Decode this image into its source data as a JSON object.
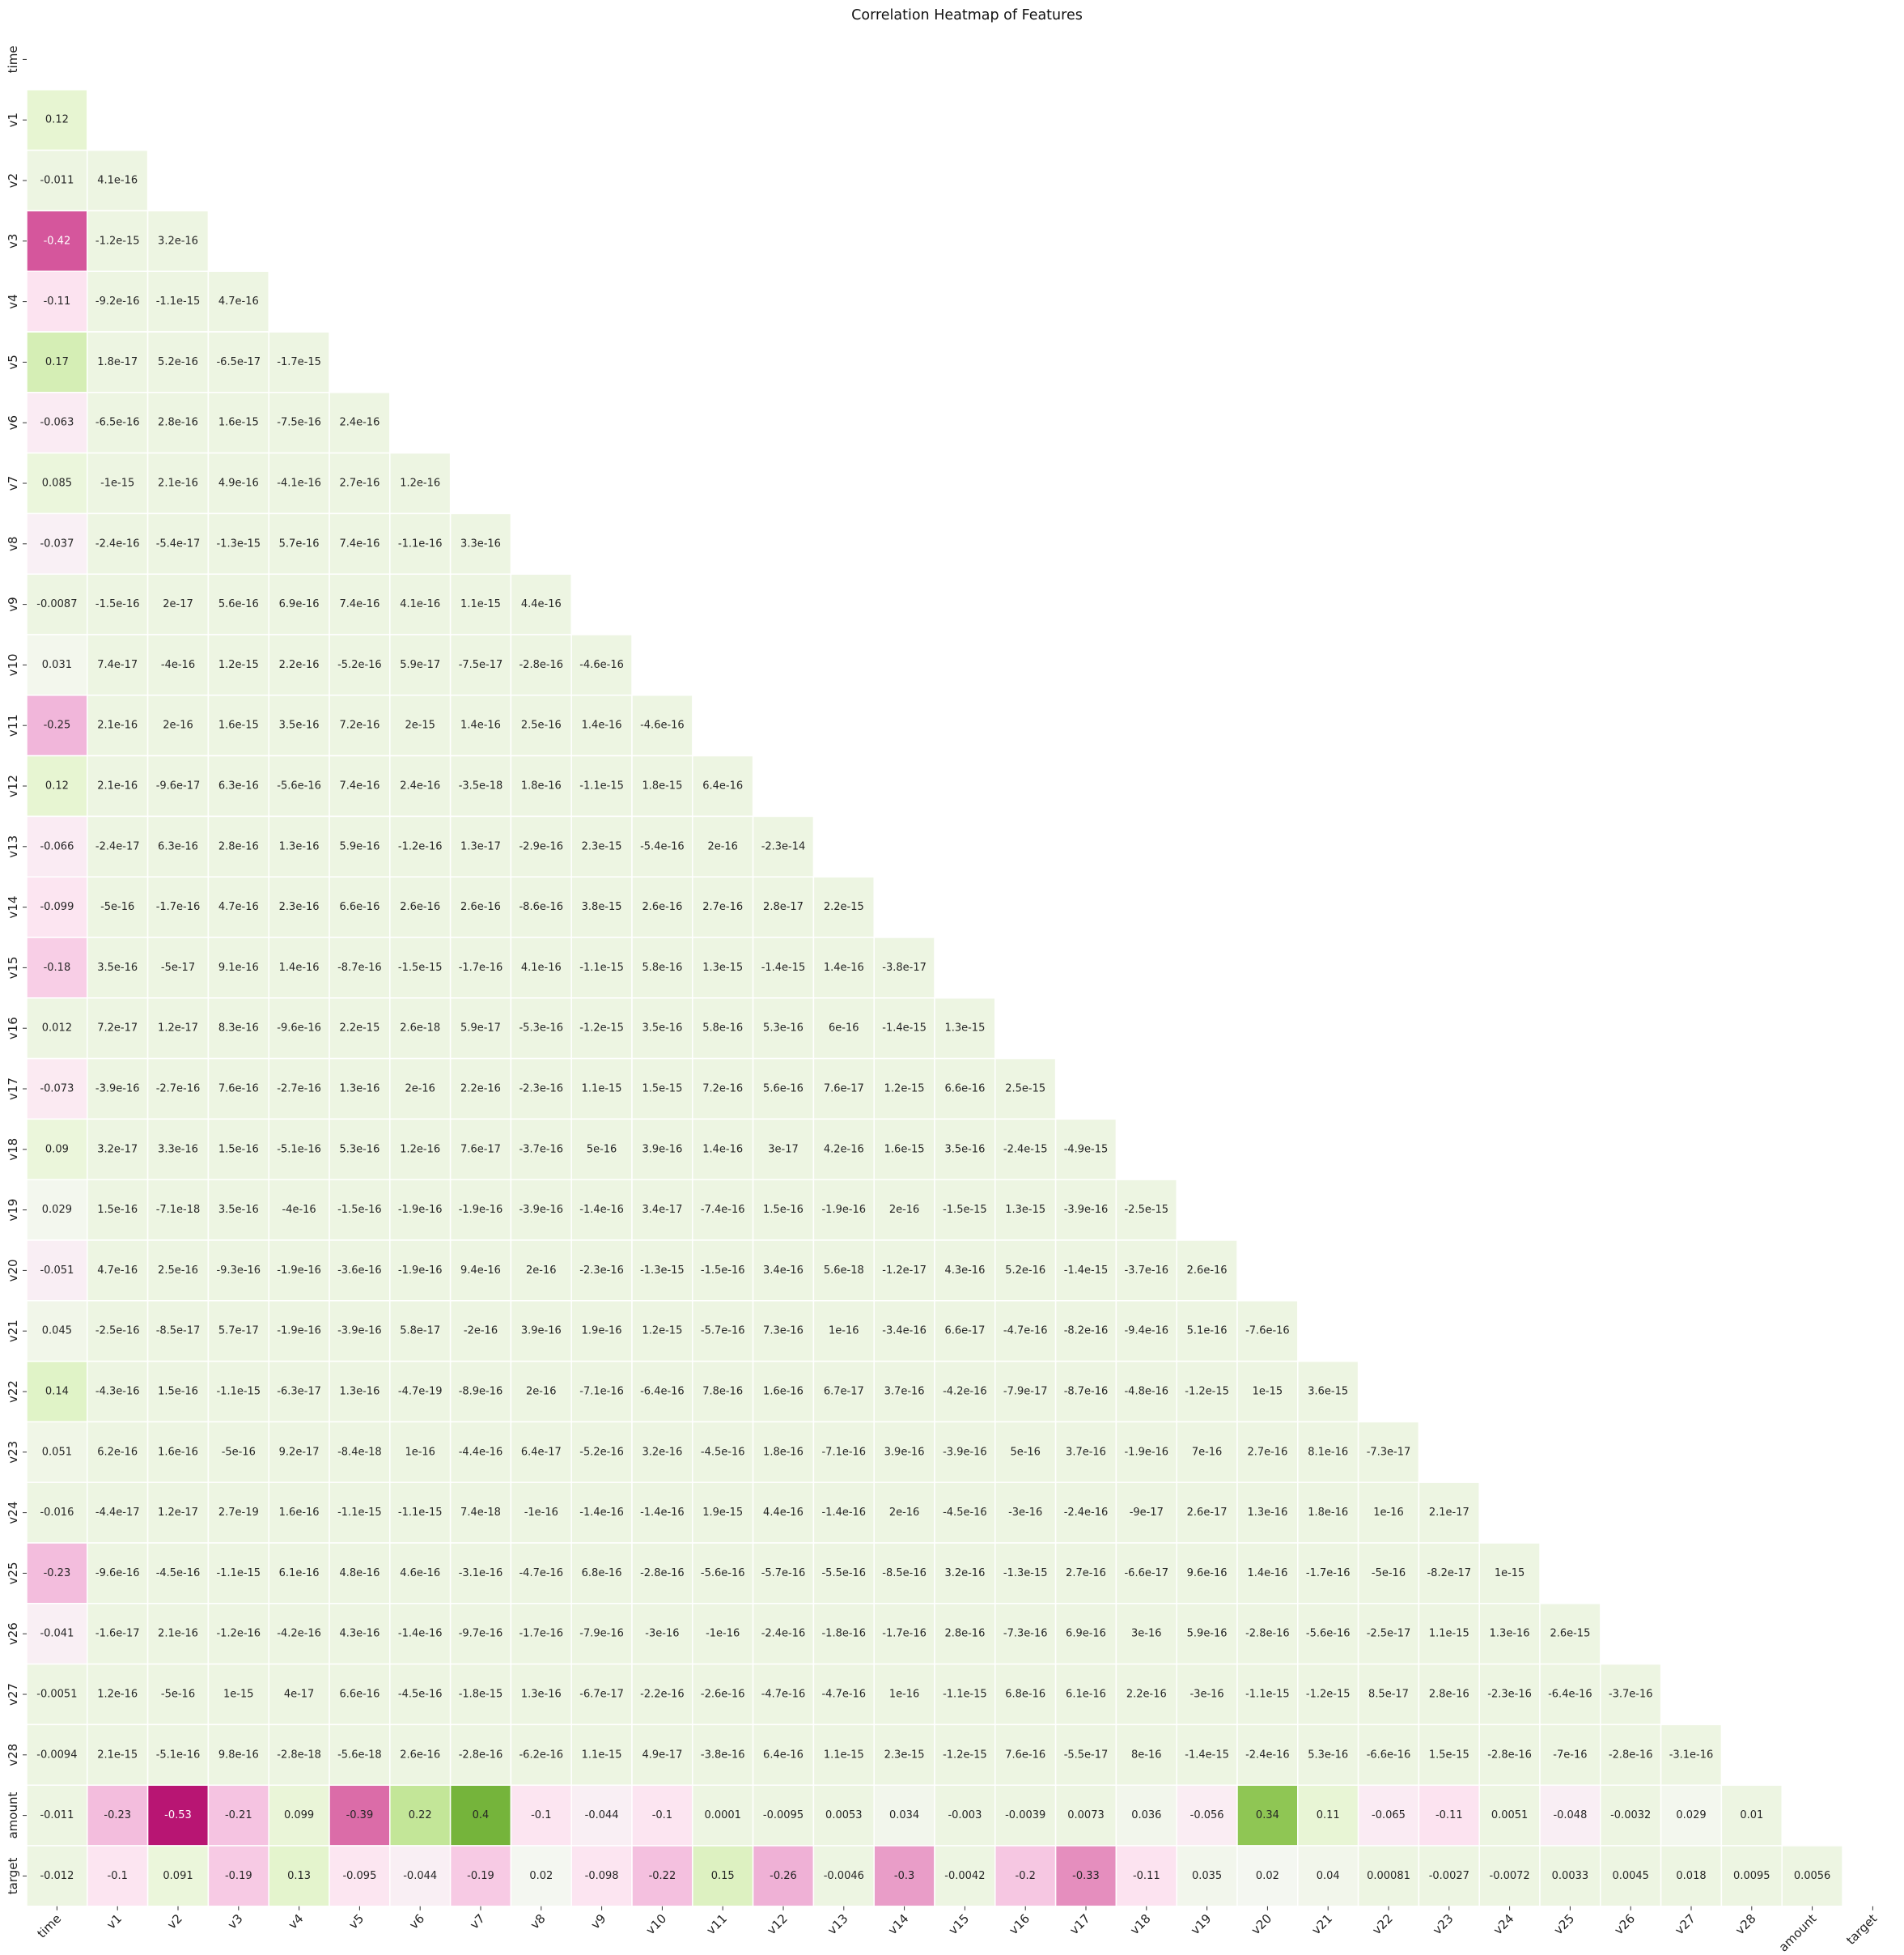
{
  "chart_data": {
    "type": "heatmap",
    "title": "Correlation Heatmap of Features",
    "xlabel": "",
    "ylabel": "",
    "mask": "upper-triangle-including-diagonal",
    "colormap": "PiYG",
    "vmin": -1,
    "vmax": 1,
    "colorbar": false,
    "labels": [
      "time",
      "v1",
      "v2",
      "v3",
      "v4",
      "v5",
      "v6",
      "v7",
      "v8",
      "v9",
      "v10",
      "v11",
      "v12",
      "v13",
      "v14",
      "v15",
      "v16",
      "v17",
      "v18",
      "v19",
      "v20",
      "v21",
      "v22",
      "v23",
      "v24",
      "v25",
      "v26",
      "v27",
      "v28",
      "amount",
      "target"
    ],
    "rows": [
      [],
      [
        "0.12"
      ],
      [
        "-0.011",
        "4.1e-16"
      ],
      [
        "-0.42",
        "-1.2e-15",
        "3.2e-16"
      ],
      [
        "-0.11",
        "-9.2e-16",
        "-1.1e-15",
        "4.7e-16"
      ],
      [
        "0.17",
        "1.8e-17",
        "5.2e-16",
        "-6.5e-17",
        "-1.7e-15"
      ],
      [
        "-0.063",
        "-6.5e-16",
        "2.8e-16",
        "1.6e-15",
        "-7.5e-16",
        "2.4e-16"
      ],
      [
        "0.085",
        "-1e-15",
        "2.1e-16",
        "4.9e-16",
        "-4.1e-16",
        "2.7e-16",
        "1.2e-16"
      ],
      [
        "-0.037",
        "-2.4e-16",
        "-5.4e-17",
        "-1.3e-15",
        "5.7e-16",
        "7.4e-16",
        "-1.1e-16",
        "3.3e-16"
      ],
      [
        "-0.0087",
        "-1.5e-16",
        "2e-17",
        "5.6e-16",
        "6.9e-16",
        "7.4e-16",
        "4.1e-16",
        "1.1e-15",
        "4.4e-16"
      ],
      [
        "0.031",
        "7.4e-17",
        "-4e-16",
        "1.2e-15",
        "2.2e-16",
        "-5.2e-16",
        "5.9e-17",
        "-7.5e-17",
        "-2.8e-16",
        "-4.6e-16"
      ],
      [
        "-0.25",
        "2.1e-16",
        "2e-16",
        "1.6e-15",
        "3.5e-16",
        "7.2e-16",
        "2e-15",
        "1.4e-16",
        "2.5e-16",
        "1.4e-16",
        "-4.6e-16"
      ],
      [
        "0.12",
        "2.1e-16",
        "-9.6e-17",
        "6.3e-16",
        "-5.6e-16",
        "7.4e-16",
        "2.4e-16",
        "-3.5e-18",
        "1.8e-16",
        "-1.1e-15",
        "1.8e-15",
        "6.4e-16"
      ],
      [
        "-0.066",
        "-2.4e-17",
        "6.3e-16",
        "2.8e-16",
        "1.3e-16",
        "5.9e-16",
        "-1.2e-16",
        "1.3e-17",
        "-2.9e-16",
        "2.3e-15",
        "-5.4e-16",
        "2e-16",
        "-2.3e-14"
      ],
      [
        "-0.099",
        "-5e-16",
        "-1.7e-16",
        "4.7e-16",
        "2.3e-16",
        "6.6e-16",
        "2.6e-16",
        "2.6e-16",
        "-8.6e-16",
        "3.8e-15",
        "2.6e-16",
        "2.7e-16",
        "2.8e-17",
        "2.2e-15"
      ],
      [
        "-0.18",
        "3.5e-16",
        "-5e-17",
        "9.1e-16",
        "1.4e-16",
        "-8.7e-16",
        "-1.5e-15",
        "-1.7e-16",
        "4.1e-16",
        "-1.1e-15",
        "5.8e-16",
        "1.3e-15",
        "-1.4e-15",
        "1.4e-16",
        "-3.8e-17"
      ],
      [
        "0.012",
        "7.2e-17",
        "1.2e-17",
        "8.3e-16",
        "-9.6e-16",
        "2.2e-15",
        "2.6e-18",
        "5.9e-17",
        "-5.3e-16",
        "-1.2e-15",
        "3.5e-16",
        "5.8e-16",
        "5.3e-16",
        "6e-16",
        "-1.4e-15",
        "1.3e-15"
      ],
      [
        "-0.073",
        "-3.9e-16",
        "-2.7e-16",
        "7.6e-16",
        "-2.7e-16",
        "1.3e-16",
        "2e-16",
        "2.2e-16",
        "-2.3e-16",
        "1.1e-15",
        "1.5e-15",
        "7.2e-16",
        "5.6e-16",
        "7.6e-17",
        "1.2e-15",
        "6.6e-16",
        "2.5e-15"
      ],
      [
        "0.09",
        "3.2e-17",
        "3.3e-16",
        "1.5e-16",
        "-5.1e-16",
        "5.3e-16",
        "1.2e-16",
        "7.6e-17",
        "-3.7e-16",
        "5e-16",
        "3.9e-16",
        "1.4e-16",
        "3e-17",
        "4.2e-16",
        "1.6e-15",
        "3.5e-16",
        "-2.4e-15",
        "-4.9e-15"
      ],
      [
        "0.029",
        "1.5e-16",
        "-7.1e-18",
        "3.5e-16",
        "-4e-16",
        "-1.5e-16",
        "-1.9e-16",
        "-1.9e-16",
        "-3.9e-16",
        "-1.4e-16",
        "3.4e-17",
        "-7.4e-16",
        "1.5e-16",
        "-1.9e-16",
        "2e-16",
        "-1.5e-15",
        "1.3e-15",
        "-3.9e-16",
        "-2.5e-15"
      ],
      [
        "-0.051",
        "4.7e-16",
        "2.5e-16",
        "-9.3e-16",
        "-1.9e-16",
        "-3.6e-16",
        "-1.9e-16",
        "9.4e-16",
        "2e-16",
        "-2.3e-16",
        "-1.3e-15",
        "-1.5e-16",
        "3.4e-16",
        "5.6e-18",
        "-1.2e-17",
        "4.3e-16",
        "5.2e-16",
        "-1.4e-15",
        "-3.7e-16",
        "2.6e-16"
      ],
      [
        "0.045",
        "-2.5e-16",
        "-8.5e-17",
        "5.7e-17",
        "-1.9e-16",
        "-3.9e-16",
        "5.8e-17",
        "-2e-16",
        "3.9e-16",
        "1.9e-16",
        "1.2e-15",
        "-5.7e-16",
        "7.3e-16",
        "1e-16",
        "-3.4e-16",
        "6.6e-17",
        "-4.7e-16",
        "-8.2e-16",
        "-9.4e-16",
        "5.1e-16",
        "-7.6e-16"
      ],
      [
        "0.14",
        "-4.3e-16",
        "1.5e-16",
        "-1.1e-15",
        "-6.3e-17",
        "1.3e-16",
        "-4.7e-19",
        "-8.9e-16",
        "2e-16",
        "-7.1e-16",
        "-6.4e-16",
        "7.8e-16",
        "1.6e-16",
        "6.7e-17",
        "3.7e-16",
        "-4.2e-16",
        "-7.9e-17",
        "-8.7e-16",
        "-4.8e-16",
        "-1.2e-15",
        "1e-15",
        "3.6e-15"
      ],
      [
        "0.051",
        "6.2e-16",
        "1.6e-16",
        "-5e-16",
        "9.2e-17",
        "-8.4e-18",
        "1e-16",
        "-4.4e-16",
        "6.4e-17",
        "-5.2e-16",
        "3.2e-16",
        "-4.5e-16",
        "1.8e-16",
        "-7.1e-16",
        "3.9e-16",
        "-3.9e-16",
        "5e-16",
        "3.7e-16",
        "-1.9e-16",
        "7e-16",
        "2.7e-16",
        "8.1e-16",
        "-7.3e-17"
      ],
      [
        "-0.016",
        "-4.4e-17",
        "1.2e-17",
        "2.7e-19",
        "1.6e-16",
        "-1.1e-15",
        "-1.1e-15",
        "7.4e-18",
        "-1e-16",
        "-1.4e-16",
        "-1.4e-16",
        "1.9e-15",
        "4.4e-16",
        "-1.4e-16",
        "2e-16",
        "-4.5e-16",
        "-3e-16",
        "-2.4e-16",
        "-9e-17",
        "2.6e-17",
        "1.3e-16",
        "1.8e-16",
        "1e-16",
        "2.1e-17"
      ],
      [
        "-0.23",
        "-9.6e-16",
        "-4.5e-16",
        "-1.1e-15",
        "6.1e-16",
        "4.8e-16",
        "4.6e-16",
        "-3.1e-16",
        "-4.7e-16",
        "6.8e-16",
        "-2.8e-16",
        "-5.6e-16",
        "-5.7e-16",
        "-5.5e-16",
        "-8.5e-16",
        "3.2e-16",
        "-1.3e-15",
        "2.7e-16",
        "-6.6e-17",
        "9.6e-16",
        "1.4e-16",
        "-1.7e-16",
        "-5e-16",
        "-8.2e-17",
        "1e-15"
      ],
      [
        "-0.041",
        "-1.6e-17",
        "2.1e-16",
        "-1.2e-16",
        "-4.2e-16",
        "4.3e-16",
        "-1.4e-16",
        "-9.7e-16",
        "-1.7e-16",
        "-7.9e-16",
        "-3e-16",
        "-1e-16",
        "-2.4e-16",
        "-1.8e-16",
        "-1.7e-16",
        "2.8e-16",
        "-7.3e-16",
        "6.9e-16",
        "3e-16",
        "5.9e-16",
        "-2.8e-16",
        "-5.6e-16",
        "-2.5e-17",
        "1.1e-15",
        "1.3e-16",
        "2.6e-15"
      ],
      [
        "-0.0051",
        "1.2e-16",
        "-5e-16",
        "1e-15",
        "4e-17",
        "6.6e-16",
        "-4.5e-16",
        "-1.8e-15",
        "1.3e-16",
        "-6.7e-17",
        "-2.2e-16",
        "-2.6e-16",
        "-4.7e-16",
        "-4.7e-16",
        "1e-16",
        "-1.1e-15",
        "6.8e-16",
        "6.1e-16",
        "2.2e-16",
        "-3e-16",
        "-1.1e-15",
        "-1.2e-15",
        "8.5e-17",
        "2.8e-16",
        "-2.3e-16",
        "-6.4e-16",
        "-3.7e-16"
      ],
      [
        "-0.0094",
        "2.1e-15",
        "-5.1e-16",
        "9.8e-16",
        "-2.8e-18",
        "-5.6e-18",
        "2.6e-16",
        "-2.8e-16",
        "-6.2e-16",
        "1.1e-15",
        "4.9e-17",
        "-3.8e-16",
        "6.4e-16",
        "1.1e-15",
        "2.3e-15",
        "-1.2e-15",
        "7.6e-16",
        "-5.5e-17",
        "8e-16",
        "-1.4e-15",
        "-2.4e-16",
        "5.3e-16",
        "-6.6e-16",
        "1.5e-15",
        "-2.8e-16",
        "-7e-16",
        "-2.8e-16",
        "-3.1e-16"
      ],
      [
        "-0.011",
        "-0.23",
        "-0.53",
        "-0.21",
        "0.099",
        "-0.39",
        "0.22",
        "0.4",
        "-0.1",
        "-0.044",
        "-0.1",
        "0.0001",
        "-0.0095",
        "0.0053",
        "0.034",
        "-0.003",
        "-0.0039",
        "0.0073",
        "0.036",
        "-0.056",
        "0.34",
        "0.11",
        "-0.065",
        "-0.11",
        "0.0051",
        "-0.048",
        "-0.0032",
        "0.029",
        "0.01"
      ],
      [
        "-0.012",
        "-0.1",
        "0.091",
        "-0.19",
        "0.13",
        "-0.095",
        "-0.044",
        "-0.19",
        "0.02",
        "-0.098",
        "-0.22",
        "0.15",
        "-0.26",
        "-0.0046",
        "-0.3",
        "-0.0042",
        "-0.2",
        "-0.33",
        "-0.11",
        "0.035",
        "0.02",
        "0.04",
        "0.00081",
        "-0.0027",
        "-0.0072",
        "0.0033",
        "0.0045",
        "0.018",
        "0.0095",
        "0.0056"
      ]
    ]
  }
}
